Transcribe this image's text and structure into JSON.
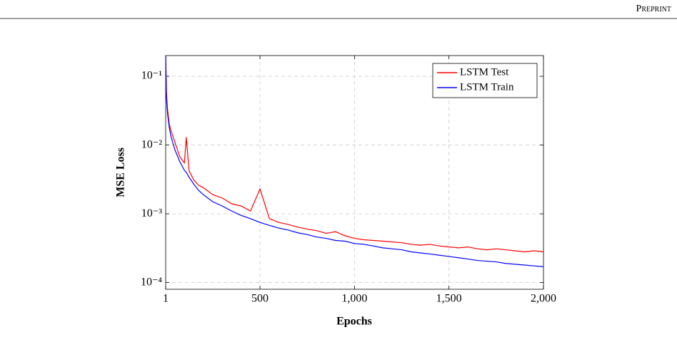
{
  "header": "Preprint",
  "chart_data": {
    "type": "line",
    "xlabel": "Epochs",
    "ylabel": "MSE Loss",
    "x": [
      1,
      5,
      10,
      20,
      30,
      50,
      75,
      100,
      110,
      125,
      150,
      175,
      200,
      250,
      300,
      350,
      400,
      450,
      500,
      550,
      600,
      650,
      700,
      750,
      800,
      850,
      900,
      950,
      1000,
      1050,
      1100,
      1150,
      1200,
      1250,
      1300,
      1350,
      1400,
      1450,
      1500,
      1550,
      1600,
      1650,
      1700,
      1750,
      1800,
      1850,
      1900,
      1950,
      2000
    ],
    "series": [
      {
        "name": "LSTM Test",
        "color": "#ff0000",
        "values": [
          0.2,
          0.06,
          0.035,
          0.02,
          0.016,
          0.011,
          0.0068,
          0.0055,
          0.013,
          0.0042,
          0.0031,
          0.0026,
          0.0024,
          0.0019,
          0.0017,
          0.0014,
          0.0013,
          0.0011,
          0.0023,
          0.00085,
          0.00075,
          0.0007,
          0.00064,
          0.0006,
          0.00057,
          0.00052,
          0.00055,
          0.00048,
          0.00044,
          0.00042,
          0.00041,
          0.0004,
          0.00039,
          0.00038,
          0.00036,
          0.00035,
          0.00036,
          0.00034,
          0.00033,
          0.00032,
          0.00033,
          0.00031,
          0.0003,
          0.00031,
          0.0003,
          0.00029,
          0.00028,
          0.00029,
          0.00028
        ]
      },
      {
        "name": "LSTM Train",
        "color": "#0000ff",
        "values": [
          0.2,
          0.05,
          0.03,
          0.018,
          0.013,
          0.0085,
          0.0058,
          0.0043,
          0.004,
          0.0034,
          0.0027,
          0.0022,
          0.0019,
          0.0015,
          0.0013,
          0.0011,
          0.00095,
          0.00085,
          0.00075,
          0.00068,
          0.00062,
          0.00058,
          0.00053,
          0.0005,
          0.00046,
          0.00044,
          0.00041,
          0.0004,
          0.00037,
          0.00036,
          0.00034,
          0.00032,
          0.00031,
          0.0003,
          0.00028,
          0.00027,
          0.00026,
          0.00025,
          0.00024,
          0.00023,
          0.00022,
          0.00021,
          0.000205,
          0.0002,
          0.00019,
          0.000185,
          0.00018,
          0.000175,
          0.00017
        ]
      }
    ],
    "xlim": [
      1,
      2000
    ],
    "xticks": [
      1,
      500,
      {
        "value": 1000,
        "label": "1,000"
      },
      {
        "value": 1500,
        "label": "1,500"
      },
      {
        "value": 2000,
        "label": "2,000"
      }
    ],
    "ylim": [
      8e-05,
      0.2
    ],
    "yscale": "log",
    "yticks": [
      {
        "value": 0.0001,
        "label": "10⁻⁴"
      },
      {
        "value": 0.001,
        "label": "10⁻³"
      },
      {
        "value": 0.01,
        "label": "10⁻²"
      },
      {
        "value": 0.1,
        "label": "10⁻¹"
      }
    ],
    "grid": true,
    "legend": "upper right"
  }
}
